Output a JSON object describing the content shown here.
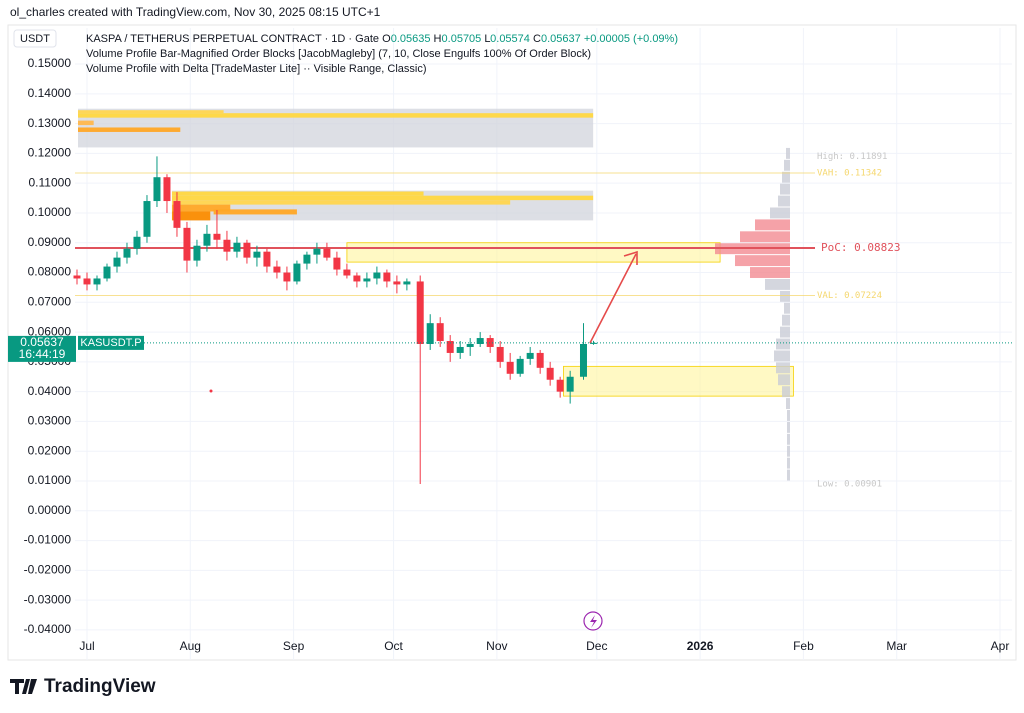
{
  "chart_data": {
    "type": "candlestick",
    "credit": "ol_charles created with TradingView.com, Nov 30, 2025 08:15 UTC+1",
    "currency": "USDT",
    "title": "KASPA / TETHERUS PERPETUAL CONTRACT · 1D · Gate",
    "ohlc_letters": [
      "O",
      "H",
      "L",
      "C"
    ],
    "change": "+0.00005 (+0.09%)",
    "indicators": [
      "Volume Profile Bar-Magnified Order Blocks [JacobMagleby] (7, 10, Close Engulfs 100% Of Order Block)",
      "Volume Profile with Delta [TradeMaster Lite] ·· Visible Range, Classic)"
    ],
    "symbol": "KASUSDT.P",
    "countdown": "16:44:19",
    "brand": "TradingView",
    "up_color": "#089981",
    "down_color": "#f23645",
    "grid": true,
    "xlim": [
      -3.6,
      277.6
    ],
    "ylim": [
      -0.0501,
      0.1621
    ],
    "xticks": [
      {
        "value": 0,
        "label": "Jul"
      },
      {
        "value": 31,
        "label": "Aug"
      },
      {
        "value": 62,
        "label": "Sep"
      },
      {
        "value": 92,
        "label": "Oct"
      },
      {
        "value": 123,
        "label": "Nov"
      },
      {
        "value": 153,
        "label": "Dec"
      },
      {
        "value": 184,
        "label": "2026"
      },
      {
        "value": 215,
        "label": "Feb"
      },
      {
        "value": 243,
        "label": "Mar"
      },
      {
        "value": 274,
        "label": "Apr"
      }
    ],
    "yticks": [
      {
        "value": 0.15,
        "label": "0.15000"
      },
      {
        "value": 0.14,
        "label": "0.14000"
      },
      {
        "value": 0.13,
        "label": "0.13000"
      },
      {
        "value": 0.12,
        "label": "0.12000"
      },
      {
        "value": 0.11,
        "label": "0.11000"
      },
      {
        "value": 0.1,
        "label": "0.10000"
      },
      {
        "value": 0.09,
        "label": "0.09000"
      },
      {
        "value": 0.08,
        "label": "0.08000"
      },
      {
        "value": 0.07,
        "label": "0.07000"
      },
      {
        "value": 0.06,
        "label": "0.06000"
      },
      {
        "value": 0.05,
        "label": "0.05000"
      },
      {
        "value": 0.04,
        "label": "0.04000"
      },
      {
        "value": 0.03,
        "label": "0.03000"
      },
      {
        "value": 0.02,
        "label": "0.02000"
      },
      {
        "value": 0.01,
        "label": "0.01000"
      },
      {
        "value": 0,
        "label": "0.00000"
      },
      {
        "value": -0.01,
        "label": "-0.01000"
      },
      {
        "value": -0.02,
        "label": "-0.02000"
      },
      {
        "value": -0.03,
        "label": "-0.03000"
      },
      {
        "value": -0.04,
        "label": "-0.04000"
      }
    ],
    "candles": {
      "x": [
        -3,
        0,
        3,
        6,
        9,
        12,
        15,
        18,
        21,
        24,
        27,
        30,
        33,
        36,
        39,
        42,
        45,
        48,
        51,
        54,
        57,
        60,
        63,
        66,
        69,
        72,
        75,
        78,
        81,
        84,
        87,
        90,
        93,
        96,
        100,
        103,
        106,
        109,
        112,
        115,
        118,
        121,
        124,
        127,
        130,
        133,
        136,
        139,
        142,
        145,
        149,
        152
      ],
      "open": [
        0.079,
        0.078,
        0.076,
        0.078,
        0.082,
        0.085,
        0.088,
        0.092,
        0.104,
        0.112,
        0.104,
        0.095,
        0.084,
        0.089,
        0.093,
        0.091,
        0.087,
        0.09,
        0.085,
        0.087,
        0.082,
        0.08,
        0.077,
        0.083,
        0.086,
        0.088,
        0.085,
        0.081,
        0.079,
        0.077,
        0.078,
        0.08,
        0.077,
        0.076,
        0.077,
        0.056,
        0.063,
        0.057,
        0.053,
        0.055,
        0.056,
        0.058,
        0.055,
        0.05,
        0.046,
        0.051,
        0.053,
        0.048,
        0.044,
        0.04,
        0.045,
        0.05635
      ],
      "high": [
        0.081,
        0.08,
        0.079,
        0.083,
        0.087,
        0.09,
        0.094,
        0.106,
        0.119,
        0.113,
        0.107,
        0.097,
        0.091,
        0.096,
        0.101,
        0.094,
        0.092,
        0.091,
        0.089,
        0.088,
        0.084,
        0.082,
        0.084,
        0.087,
        0.09,
        0.09,
        0.087,
        0.083,
        0.08,
        0.08,
        0.082,
        0.081,
        0.079,
        0.078,
        0.079,
        0.066,
        0.065,
        0.059,
        0.057,
        0.058,
        0.06,
        0.059,
        0.057,
        0.053,
        0.052,
        0.055,
        0.054,
        0.05,
        0.045,
        0.047,
        0.063,
        0.05705
      ],
      "low": [
        0.076,
        0.074,
        0.074,
        0.077,
        0.08,
        0.083,
        0.086,
        0.09,
        0.102,
        0.1,
        0.092,
        0.08,
        0.082,
        0.087,
        0.088,
        0.084,
        0.085,
        0.083,
        0.082,
        0.08,
        0.078,
        0.074,
        0.076,
        0.081,
        0.083,
        0.084,
        0.079,
        0.078,
        0.075,
        0.075,
        0.076,
        0.075,
        0.073,
        0.074,
        0.009,
        0.054,
        0.055,
        0.05,
        0.051,
        0.052,
        0.055,
        0.053,
        0.048,
        0.044,
        0.045,
        0.049,
        0.046,
        0.042,
        0.038,
        0.036,
        0.044,
        0.05574
      ],
      "close": [
        0.078,
        0.076,
        0.078,
        0.082,
        0.085,
        0.088,
        0.092,
        0.104,
        0.112,
        0.104,
        0.095,
        0.084,
        0.089,
        0.093,
        0.091,
        0.087,
        0.09,
        0.085,
        0.087,
        0.082,
        0.08,
        0.077,
        0.083,
        0.086,
        0.088,
        0.085,
        0.081,
        0.079,
        0.077,
        0.078,
        0.08,
        0.077,
        0.076,
        0.077,
        0.056,
        0.063,
        0.057,
        0.053,
        0.055,
        0.056,
        0.058,
        0.055,
        0.05,
        0.046,
        0.051,
        0.053,
        0.048,
        0.044,
        0.04,
        0.045,
        0.056,
        0.05637
      ]
    },
    "zones": [
      {
        "x0": -2.7,
        "x1": 151.9,
        "y0": 0.122,
        "y1": 0.135,
        "color": "#d1d4dc"
      },
      {
        "x0": 25.5,
        "x1": 151.9,
        "y0": 0.0975,
        "y1": 0.1075,
        "color": "#d1d4dc"
      },
      {
        "x0": -2.7,
        "x1": 41,
        "y0": 0.1335,
        "y1": 0.1345,
        "color": "#ffd54f"
      },
      {
        "x0": -2.7,
        "x1": 151.9,
        "y0": 0.132,
        "y1": 0.1335,
        "color": "#ffd740"
      },
      {
        "x0": -2.7,
        "x1": 2,
        "y0": 0.1295,
        "y1": 0.131,
        "color": "#ffb74d"
      },
      {
        "x0": -2.7,
        "x1": 28,
        "y0": 0.1272,
        "y1": 0.1287,
        "color": "#ffa726"
      },
      {
        "x0": 25.5,
        "x1": 101,
        "y0": 0.1058,
        "y1": 0.1072,
        "color": "#ffd740"
      },
      {
        "x0": 25.5,
        "x1": 151.9,
        "y0": 0.1043,
        "y1": 0.1058,
        "color": "#ffd740"
      },
      {
        "x0": 25.5,
        "x1": 127,
        "y0": 0.1028,
        "y1": 0.1043,
        "color": "#ffd54f"
      },
      {
        "x0": 25.5,
        "x1": 43,
        "y0": 0.1005,
        "y1": 0.1028,
        "color": "#ffa726"
      },
      {
        "x0": 25.5,
        "x1": 37,
        "y0": 0.0975,
        "y1": 0.1005,
        "color": "#fb8c00"
      },
      {
        "x0": 38,
        "x1": 63,
        "y0": 0.0995,
        "y1": 0.1012,
        "color": "#ffa726"
      },
      {
        "x0": 78,
        "x1": 190,
        "y0": 0.0835,
        "y1": 0.09,
        "color": "#fff59d"
      },
      {
        "x0": 143,
        "x1": 212,
        "y0": 0.0385,
        "y1": 0.0485,
        "color": "#fff59d"
      }
    ],
    "profile": {
      "levels": [
        0.01,
        0.014,
        0.018,
        0.022,
        0.026,
        0.03,
        0.034,
        0.038,
        0.042,
        0.046,
        0.05,
        0.054,
        0.058,
        0.062,
        0.066,
        0.07,
        0.074,
        0.078,
        0.082,
        0.086,
        0.09,
        0.094,
        0.098,
        0.102,
        0.106,
        0.11,
        0.114,
        0.118
      ],
      "volumes": [
        3,
        3,
        3,
        3,
        3,
        3,
        4,
        8,
        12,
        14,
        16,
        14,
        10,
        8,
        6,
        10,
        25,
        40,
        55,
        75,
        50,
        35,
        20,
        12,
        10,
        8,
        6,
        4
      ],
      "marks": [
        {
          "label": "High: 0.11891",
          "value": 0.11891
        },
        {
          "label": "VAH: 0.11342",
          "value": 0.11342
        },
        {
          "label": "PoC: 0.08823",
          "value": 0.08823
        },
        {
          "label": "VAL: 0.07224",
          "value": 0.07224
        },
        {
          "label": "Low: 0.00901",
          "value": 0.00901
        }
      ]
    }
  }
}
